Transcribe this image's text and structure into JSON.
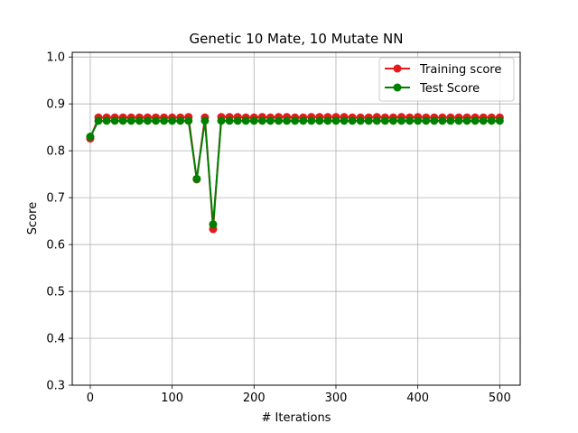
{
  "chart_data": {
    "type": "line",
    "title": "Genetic 10 Mate, 10 Mutate NN",
    "xlabel": "# Iterations",
    "ylabel": "Score",
    "xlim": [
      -22,
      525
    ],
    "ylim": [
      0.3,
      1.01
    ],
    "xticks": [
      0,
      100,
      200,
      300,
      400,
      500
    ],
    "xtick_labels": [
      "0",
      "100",
      "200",
      "300",
      "400",
      "500"
    ],
    "yticks": [
      0.3,
      0.4,
      0.5,
      0.6,
      0.7,
      0.8,
      0.9,
      1.0
    ],
    "ytick_labels": [
      "0.3",
      "0.4",
      "0.5",
      "0.6",
      "0.7",
      "0.8",
      "0.9",
      "1.0"
    ],
    "grid": true,
    "legend_position": "top-right",
    "x": [
      0,
      10,
      20,
      30,
      40,
      50,
      60,
      70,
      80,
      90,
      100,
      110,
      120,
      130,
      140,
      150,
      160,
      170,
      180,
      190,
      200,
      210,
      220,
      230,
      240,
      250,
      260,
      270,
      280,
      290,
      300,
      310,
      320,
      330,
      340,
      350,
      360,
      370,
      380,
      390,
      400,
      410,
      420,
      430,
      440,
      450,
      460,
      470,
      480,
      490,
      500
    ],
    "series": [
      {
        "name": "Training score",
        "color": "#e41a1c",
        "values": [
          0.826,
          0.871,
          0.871,
          0.871,
          0.871,
          0.871,
          0.871,
          0.871,
          0.871,
          0.871,
          0.871,
          0.871,
          0.872,
          0.739,
          0.871,
          0.633,
          0.872,
          0.872,
          0.872,
          0.871,
          0.871,
          0.872,
          0.871,
          0.872,
          0.872,
          0.871,
          0.871,
          0.872,
          0.872,
          0.872,
          0.872,
          0.872,
          0.871,
          0.871,
          0.871,
          0.872,
          0.871,
          0.871,
          0.872,
          0.871,
          0.872,
          0.871,
          0.871,
          0.871,
          0.871,
          0.871,
          0.871,
          0.871,
          0.871,
          0.871,
          0.871
        ]
      },
      {
        "name": "Test Score",
        "color": "#008000",
        "values": [
          0.83,
          0.864,
          0.864,
          0.864,
          0.864,
          0.864,
          0.864,
          0.864,
          0.864,
          0.864,
          0.864,
          0.864,
          0.864,
          0.74,
          0.864,
          0.643,
          0.864,
          0.864,
          0.864,
          0.864,
          0.864,
          0.864,
          0.864,
          0.864,
          0.864,
          0.864,
          0.864,
          0.864,
          0.864,
          0.864,
          0.864,
          0.864,
          0.864,
          0.864,
          0.864,
          0.864,
          0.864,
          0.864,
          0.864,
          0.864,
          0.864,
          0.864,
          0.864,
          0.864,
          0.864,
          0.864,
          0.864,
          0.864,
          0.864,
          0.864,
          0.864
        ]
      }
    ]
  }
}
